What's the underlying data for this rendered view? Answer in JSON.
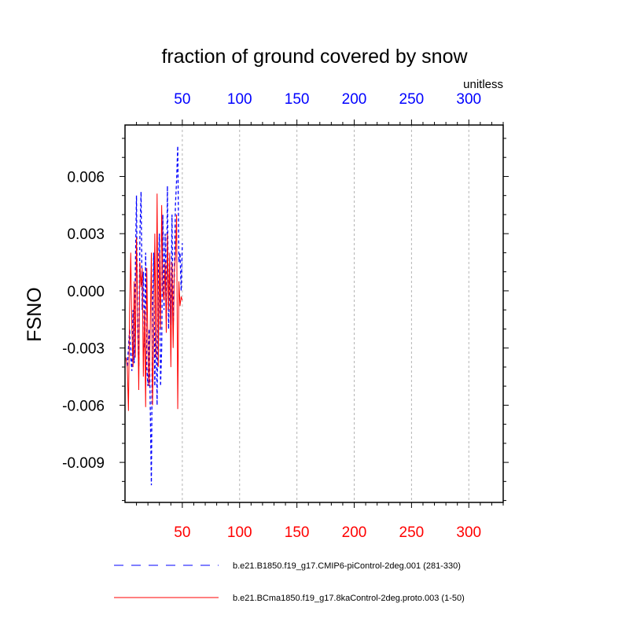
{
  "chart_data": {
    "type": "line",
    "title": "fraction of ground covered by snow",
    "units": "unitless",
    "ylabel": "FSNO",
    "xlim": [
      0,
      330
    ],
    "ylim": [
      -0.0111,
      0.0087
    ],
    "yticks": [
      0.006,
      0.003,
      0.0,
      -0.003,
      -0.006,
      -0.009
    ],
    "ytick_labels": [
      "0.006",
      "0.003",
      "0.000",
      "-0.003",
      "-0.006",
      "-0.009"
    ],
    "xticks": [
      50,
      100,
      150,
      200,
      250,
      300
    ],
    "xtick_labels": [
      "50",
      "100",
      "150",
      "200",
      "250",
      "300"
    ],
    "top_axis_color": "#0000ff",
    "bottom_axis_color": "#ff0000",
    "grid": "vertical dotted at major x ticks",
    "legend_position": "bottom",
    "series": [
      {
        "name": "b.e21.B1850.f19_g17.CMIP6-piControl-2deg.001 (281-330)",
        "color": "#0000ff",
        "dash": "dashed",
        "x": [
          1,
          2,
          3,
          4,
          5,
          6,
          7,
          8,
          9,
          10,
          11,
          12,
          13,
          14,
          15,
          16,
          17,
          18,
          19,
          20,
          21,
          22,
          23,
          24,
          25,
          26,
          27,
          28,
          29,
          30,
          31,
          32,
          33,
          34,
          35,
          36,
          37,
          38,
          39,
          40,
          41,
          42,
          43,
          44,
          45,
          46,
          47,
          48,
          49,
          50
        ],
        "values": [
          -0.0035,
          -0.004,
          -0.003,
          -0.002,
          -0.0035,
          -0.0042,
          -0.001,
          -0.0038,
          0.001,
          0.005,
          -0.002,
          -0.004,
          0.003,
          0.0052,
          -0.001,
          0.001,
          -0.003,
          0.002,
          -0.004,
          -0.005,
          -0.002,
          -0.006,
          -0.0102,
          -0.001,
          0.002,
          -0.005,
          -0.001,
          -0.006,
          0.001,
          0.003,
          -0.005,
          -0.003,
          0.004,
          -0.001,
          0.003,
          -0.0015,
          0.0055,
          -0.002,
          0.001,
          -0.0018,
          0.004,
          -0.0021,
          0.0008,
          0.0045,
          0.0058,
          0.0076,
          0.0015,
          0.002,
          0.0,
          0.0025
        ]
      },
      {
        "name": "b.e21.BCma1850.f19_g17.8kaControl-2deg.proto.003 (1-50)",
        "color": "#ff0000",
        "dash": "solid",
        "x": [
          1,
          2,
          3,
          4,
          5,
          6,
          7,
          8,
          9,
          10,
          11,
          12,
          13,
          14,
          15,
          16,
          17,
          18,
          19,
          20,
          21,
          22,
          23,
          24,
          25,
          26,
          27,
          28,
          29,
          30,
          31,
          32,
          33,
          34,
          35,
          36,
          37,
          38,
          39,
          40,
          41,
          42,
          43,
          44,
          45,
          46,
          47,
          48,
          49,
          50
        ],
        "values": [
          -0.0035,
          -0.004,
          -0.0063,
          -0.001,
          0.002,
          -0.002,
          -0.004,
          0.0005,
          -0.0035,
          0.0028,
          -0.001,
          -0.0052,
          0.0015,
          0.0002,
          0.0012,
          -0.0045,
          -0.001,
          -0.0061,
          0.0012,
          -0.003,
          -0.005,
          -0.002,
          0.002,
          -0.006,
          -0.0025,
          0.003,
          -0.0035,
          0.0051,
          -0.004,
          0.002,
          -0.002,
          0.0045,
          0.0,
          -0.0005,
          0.0015,
          -0.0022,
          0.003,
          -0.001,
          0.002,
          -0.004,
          0.0015,
          -0.003,
          0.001,
          0.0018,
          0.004,
          -0.0062,
          0.0005,
          -0.0008,
          -0.0003,
          -0.0005
        ]
      }
    ]
  }
}
